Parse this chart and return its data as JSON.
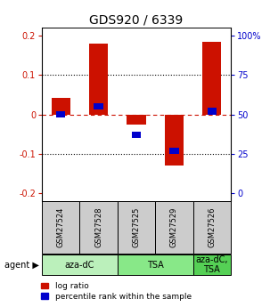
{
  "title": "GDS920 / 6339",
  "samples": [
    "GSM27524",
    "GSM27528",
    "GSM27525",
    "GSM27529",
    "GSM27526"
  ],
  "log_ratio": [
    0.042,
    0.18,
    -0.025,
    -0.13,
    0.185
  ],
  "percentile_rank_offset": [
    50,
    55,
    37,
    27,
    52
  ],
  "agents": [
    {
      "label": "aza-dC",
      "span": [
        0,
        2
      ],
      "color": "#bbf0bb"
    },
    {
      "label": "TSA",
      "span": [
        2,
        4
      ],
      "color": "#88e888"
    },
    {
      "label": "aza-dC,\nTSA",
      "span": [
        4,
        5
      ],
      "color": "#55d055"
    }
  ],
  "ylim": [
    -0.22,
    0.22
  ],
  "yticks_left": [
    -0.2,
    -0.1,
    0.0,
    0.1,
    0.2
  ],
  "yticks_left_labels": [
    "-0.2",
    "-0.1",
    "0",
    "0.1",
    "0.2"
  ],
  "yticks_right_labels": [
    "0",
    "25",
    "50",
    "75",
    "100%"
  ],
  "bar_width": 0.5,
  "blue_bar_width": 0.25,
  "red_color": "#cc1100",
  "blue_color": "#0000cc",
  "legend_red": "log ratio",
  "legend_blue": "percentile rank within the sample",
  "background_color": "#ffffff",
  "title_fontsize": 10,
  "tick_fontsize": 7,
  "sample_fontsize": 6,
  "agent_fontsize": 7,
  "legend_fontsize": 6.5,
  "gsm_bg": "#cccccc",
  "cell_border": "#888888"
}
